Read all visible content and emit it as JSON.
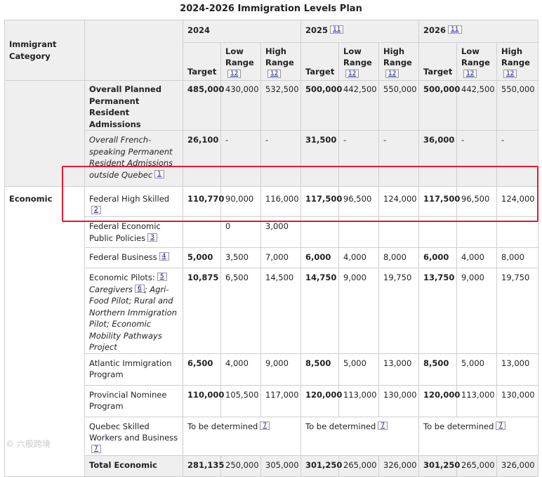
{
  "caption": "2024-2026 Immigration Levels Plan",
  "header": {
    "category_label": "Immigrant Category",
    "years": [
      {
        "year": "2024",
        "ref": ""
      },
      {
        "year": "2025",
        "ref": "11"
      },
      {
        "year": "2026",
        "ref": "11"
      }
    ],
    "target": "Target",
    "low": "Low Range",
    "high": "High Range",
    "range_ref": "12"
  },
  "rows": [
    {
      "label": "Overall Planned Permanent Resident Admissions",
      "ref": "",
      "vals": [
        "485,000",
        "430,000",
        "532,500",
        "500,000",
        "442,500",
        "550,000",
        "500,000",
        "442,500",
        "550,000"
      ]
    },
    {
      "label": "Overall French-speaking Permanent Resident Admissions outside Quebec",
      "ref": "1",
      "vals": [
        "26,100",
        "-",
        "-",
        "31,500",
        "-",
        "-",
        "36,000",
        "-",
        "-"
      ]
    },
    {
      "category": "Economic",
      "label": "Federal High Skilled",
      "ref": "2",
      "vals": [
        "110,770",
        "90,000",
        "116,000",
        "117,500",
        "96,500",
        "124,000",
        "117,500",
        "96,500",
        "124,000"
      ]
    },
    {
      "label": "Federal Economic Public Policies",
      "ref": "3",
      "vals": [
        "",
        "0",
        "3,000",
        "",
        "",
        "",
        "",
        "",
        ""
      ]
    },
    {
      "label": "Federal Business",
      "ref": "4",
      "vals": [
        "5,000",
        "3,500",
        "7,000",
        "6,000",
        "4,000",
        "8,000",
        "6,000",
        "4,000",
        "8,000"
      ]
    },
    {
      "label_a": "Economic Pilots:",
      "ref_a": "5",
      "label_b": "Caregivers",
      "ref_b": "6",
      "label_c": "; Agri-Food Pilot; Rural and Northern Immigration Pilot; Economic Mobility Pathways Project",
      "vals": [
        "10,875",
        "6,500",
        "14,500",
        "14,750",
        "9,000",
        "19,750",
        "13,750",
        "9,000",
        "19,750"
      ]
    },
    {
      "label": "Atlantic Immigration Program",
      "ref": "",
      "vals": [
        "6,500",
        "4,000",
        "9,000",
        "8,500",
        "5,000",
        "13,000",
        "8,500",
        "5,000",
        "13,000"
      ]
    },
    {
      "label": "Provincial Nominee Program",
      "ref": "",
      "vals": [
        "110,000",
        "105,500",
        "117,000",
        "120,000",
        "113,000",
        "130,000",
        "120,000",
        "113,000",
        "130,000"
      ]
    },
    {
      "label": "Quebec Skilled Workers and Business",
      "ref": "7",
      "tbd": [
        "To be determined",
        "To be determined",
        "To be determined"
      ],
      "tbd_ref": "7"
    },
    {
      "label": "Total Economic",
      "ref": "",
      "vals": [
        "281,135",
        "250,000",
        "305,000",
        "301,250",
        "265,000",
        "326,000",
        "301,250",
        "265,000",
        "326,000"
      ]
    }
  ],
  "watermark": "© 六般跨境"
}
